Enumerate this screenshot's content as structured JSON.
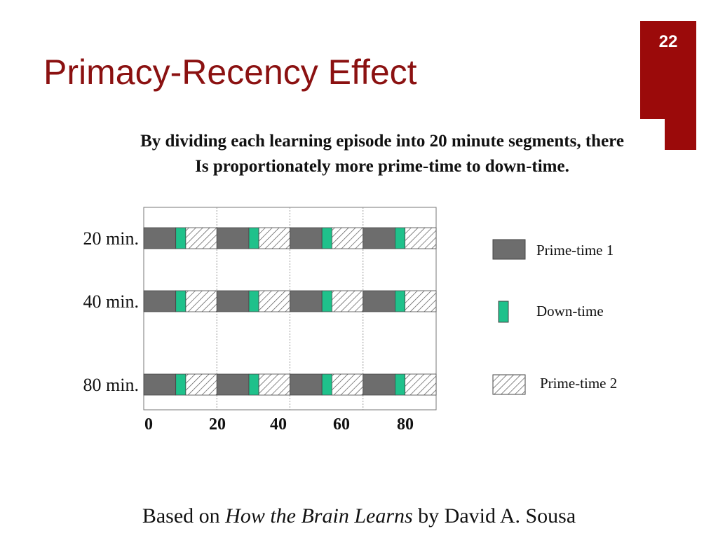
{
  "slide": {
    "number": "22",
    "title": "Primacy-Recency Effect",
    "subtitle_line1": "By dividing each learning episode into 20 minute segments, there",
    "subtitle_line2": "Is proportionately more prime-time to down-time."
  },
  "caption": {
    "prefix": "Based on ",
    "book": "How the Brain Learns",
    "suffix": " by David A. Sousa"
  },
  "colors": {
    "accent": "#9b0a0a",
    "title": "#8b1111",
    "prime_time_1": "#6d6d6d",
    "down_time": "#1fc18b",
    "prime_time_2_hatch": "#555555"
  },
  "chart_data": {
    "type": "bar",
    "orientation": "horizontal-segmented",
    "categories": [
      "20 min.",
      "40 min.",
      "80 min."
    ],
    "x_ticks": [
      "0",
      "20",
      "40",
      "60",
      "80"
    ],
    "xlim": [
      0,
      94
    ],
    "grid": true,
    "legend_placement": "right",
    "legend": [
      {
        "key": "prime1",
        "label": "Prime-time 1"
      },
      {
        "key": "down",
        "label": "Down-time"
      },
      {
        "key": "prime2",
        "label": "Prime-time 2"
      }
    ],
    "segment_pattern": [
      {
        "kind": "prime1",
        "duration": 10.3
      },
      {
        "kind": "down",
        "duration": 3.2
      },
      {
        "kind": "prime2",
        "duration": 10.0
      }
    ],
    "repeats": 4
  }
}
